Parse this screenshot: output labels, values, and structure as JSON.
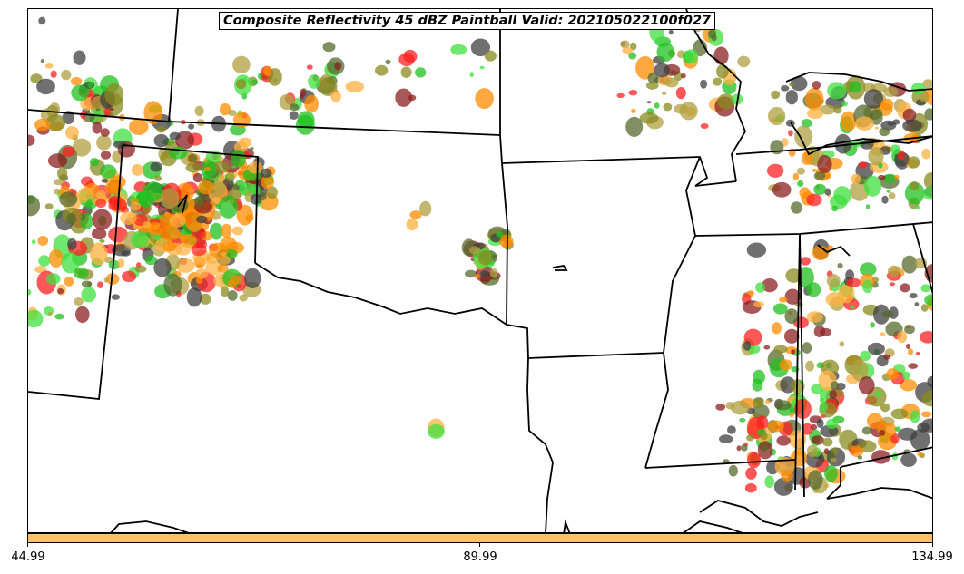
{
  "title": "Composite Reflectivity 45 dBZ Paintball Valid: 202105022100f027",
  "colorbar": {
    "color": "#fec163",
    "ticks": [
      "44.99",
      "89.99",
      "134.99"
    ]
  },
  "colors": {
    "red": "#ff2020",
    "orange": "#ff8c00",
    "light_orange": "#ffb040",
    "dark_red": "#8b2020",
    "olive": "#8a8a20",
    "dark_olive": "#556b2f",
    "green": "#20c020",
    "light_green": "#40e040",
    "dark_gray": "#404040",
    "khaki": "#b0a040",
    "boundaries": "#000000"
  }
}
